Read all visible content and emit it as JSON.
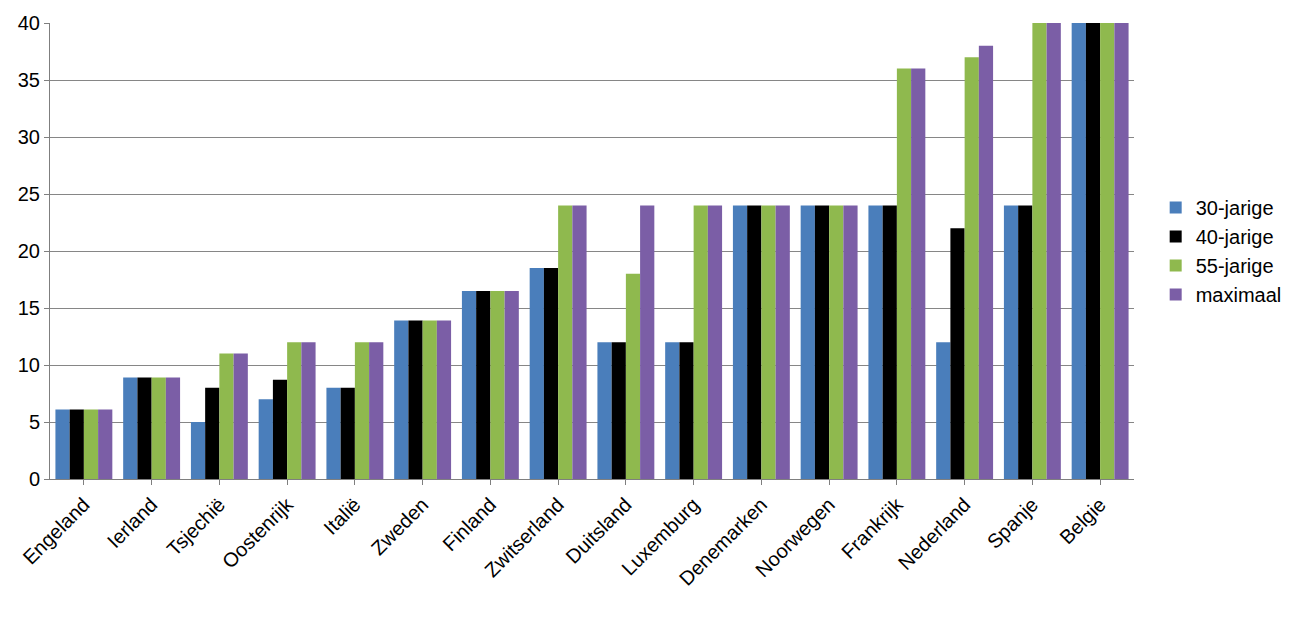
{
  "chart_data": {
    "type": "bar",
    "categories": [
      "Engeland",
      "Ierland",
      "Tsjechië",
      "Oostenrijk",
      "Italië",
      "Zweden",
      "Finland",
      "Zwitserland",
      "Duitsland",
      "Luxemburg",
      "Denemarken",
      "Noorwegen",
      "Frankrijk",
      "Nederland",
      "Spanje",
      "Belgie"
    ],
    "series": [
      {
        "name": "30-jarige",
        "color": "#4a7ebb",
        "values": [
          6.1,
          8.9,
          5,
          7,
          8,
          13.9,
          16.5,
          18.5,
          12,
          12,
          24,
          24,
          24,
          12,
          24,
          40
        ]
      },
      {
        "name": "40-jarige",
        "color": "#000000",
        "values": [
          6.1,
          8.9,
          8,
          8.7,
          8,
          13.9,
          16.5,
          18.5,
          12,
          12,
          24,
          24,
          24,
          22,
          24,
          40
        ]
      },
      {
        "name": "55-jarige",
        "color": "#8fb94e",
        "values": [
          6.1,
          8.9,
          11,
          12,
          12,
          13.9,
          16.5,
          24,
          18,
          24,
          24,
          24,
          36,
          37,
          40,
          40
        ]
      },
      {
        "name": "maximaal",
        "color": "#7b5ea6",
        "values": [
          6.1,
          8.9,
          11,
          12,
          12,
          13.9,
          16.5,
          24,
          24,
          24,
          24,
          24,
          36,
          38,
          40,
          40
        ]
      }
    ],
    "ylim": [
      0,
      40
    ],
    "yticks": [
      0,
      5,
      10,
      15,
      20,
      25,
      30,
      35,
      40
    ],
    "grid": true,
    "legend": "right"
  }
}
